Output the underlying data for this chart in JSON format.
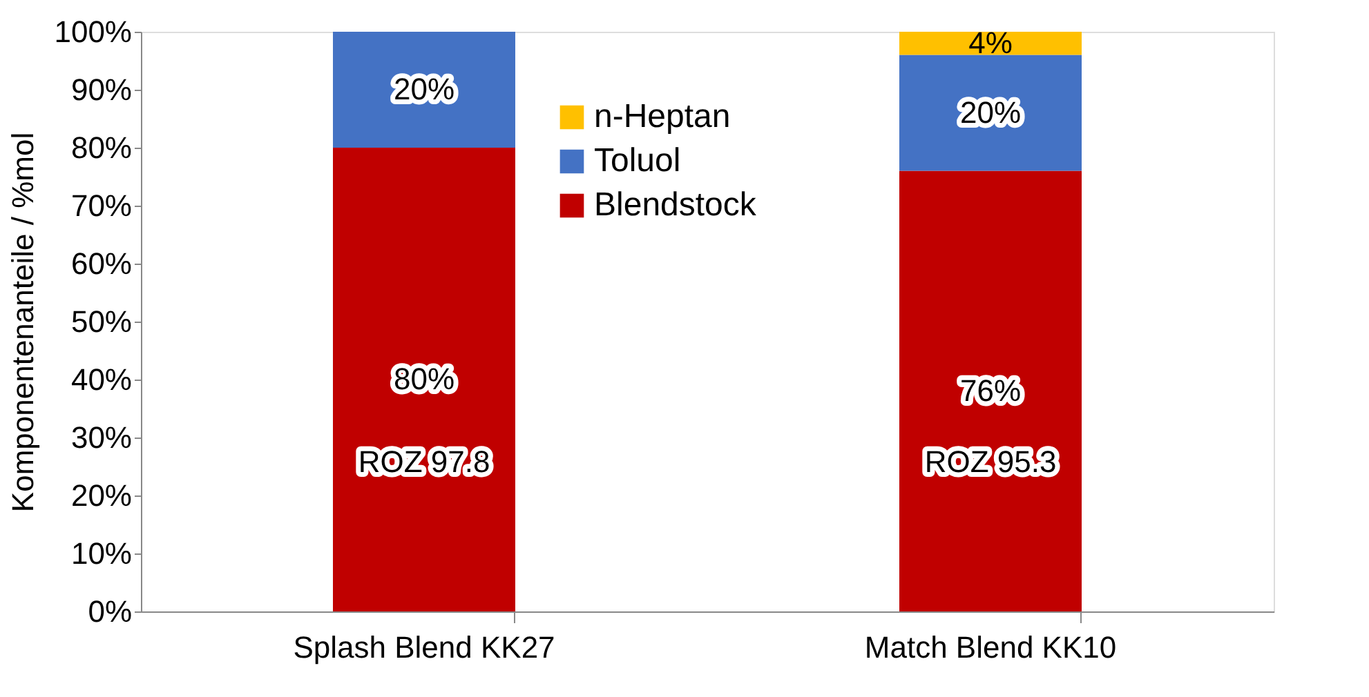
{
  "chart_data": {
    "type": "bar",
    "stacked": true,
    "ylabel": "Komponentenanteile / %mol",
    "categories": [
      "Splash Blend KK27",
      "Match Blend KK10"
    ],
    "series": [
      {
        "name": "Blendstock",
        "color": "#c00000",
        "values": [
          80,
          76
        ],
        "value_labels": [
          "80%",
          "76%"
        ]
      },
      {
        "name": "Toluol",
        "color": "#4472c4",
        "values": [
          20,
          20
        ],
        "value_labels": [
          "20%",
          "20%"
        ]
      },
      {
        "name": "n-Heptan",
        "color": "#ffc000",
        "values": [
          null,
          4
        ],
        "value_labels": [
          null,
          "4%"
        ]
      }
    ],
    "ylim": [
      0,
      100
    ],
    "yticks": [
      {
        "value": 0,
        "label": "0%"
      },
      {
        "value": 10,
        "label": "10%"
      },
      {
        "value": 20,
        "label": "20%"
      },
      {
        "value": 30,
        "label": "30%"
      },
      {
        "value": 40,
        "label": "40%"
      },
      {
        "value": 50,
        "label": "50%"
      },
      {
        "value": 60,
        "label": "60%"
      },
      {
        "value": 70,
        "label": "70%"
      },
      {
        "value": 80,
        "label": "80%"
      },
      {
        "value": 90,
        "label": "90%"
      },
      {
        "value": 100,
        "label": "100%"
      }
    ],
    "annotations": [
      "ROZ 97.8",
      "ROZ 95.3"
    ],
    "legend": "top",
    "grid": false
  }
}
